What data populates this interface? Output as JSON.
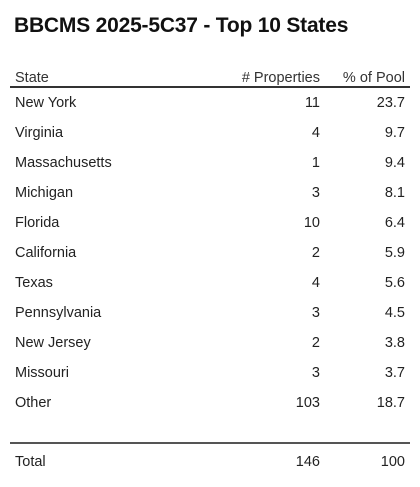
{
  "title": "BBCMS 2025-5C37 - Top 10 States",
  "table": {
    "headers": [
      "State",
      "# Properties",
      "% of Pool"
    ],
    "rows": [
      {
        "state": "New York",
        "properties": "11",
        "pct": "23.7"
      },
      {
        "state": "Virginia",
        "properties": "4",
        "pct": "9.7"
      },
      {
        "state": "Massachusetts",
        "properties": "1",
        "pct": "9.4"
      },
      {
        "state": "Michigan",
        "properties": "3",
        "pct": "8.1"
      },
      {
        "state": "Florida",
        "properties": "10",
        "pct": "6.4"
      },
      {
        "state": "California",
        "properties": "2",
        "pct": "5.9"
      },
      {
        "state": "Texas",
        "properties": "4",
        "pct": "5.6"
      },
      {
        "state": "Pennsylvania",
        "properties": "3",
        "pct": "4.5"
      },
      {
        "state": "New Jersey",
        "properties": "2",
        "pct": "3.8"
      },
      {
        "state": "Missouri",
        "properties": "3",
        "pct": "3.7"
      },
      {
        "state": "Other",
        "properties": "103",
        "pct": "18.7"
      }
    ],
    "total": {
      "label": "Total",
      "properties": "146",
      "pct": "100"
    }
  }
}
